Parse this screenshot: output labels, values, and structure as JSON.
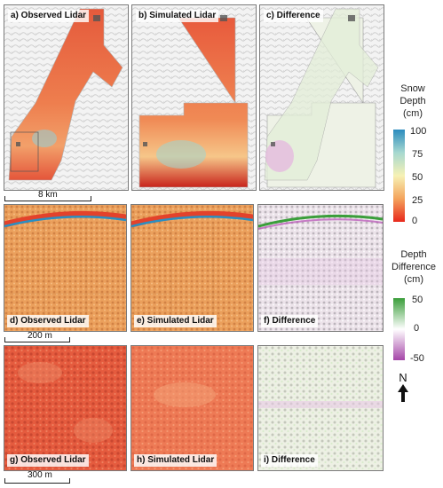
{
  "panels": {
    "a": "a) Observed Lidar",
    "b": "b) Simulated Lidar",
    "c": "c) Difference",
    "d": "d) Observed Lidar",
    "e": "e) Simulated Lidar",
    "f": "f) Difference",
    "g": "g) Observed Lidar",
    "h": "h) Simulated Lidar",
    "i": "i) Difference"
  },
  "scalebars": {
    "top": "8 km",
    "middle": "200 m",
    "bottom": "300 m"
  },
  "legend_snow": {
    "title_lines": [
      "Snow",
      "Depth",
      "(cm)"
    ],
    "ticks": [
      "100",
      "75",
      "50",
      "25",
      "0"
    ],
    "colors": [
      "#2b8cbe",
      "#a6d8d0",
      "#f6f1b5",
      "#f4a35c",
      "#e8291c"
    ]
  },
  "legend_diff": {
    "title_lines": [
      "Depth",
      "Difference",
      "(cm)"
    ],
    "ticks": [
      "50",
      "0",
      "-50"
    ],
    "colors": [
      "#3a9e3a",
      "#ffffff",
      "#a546a8"
    ]
  },
  "north": "N"
}
